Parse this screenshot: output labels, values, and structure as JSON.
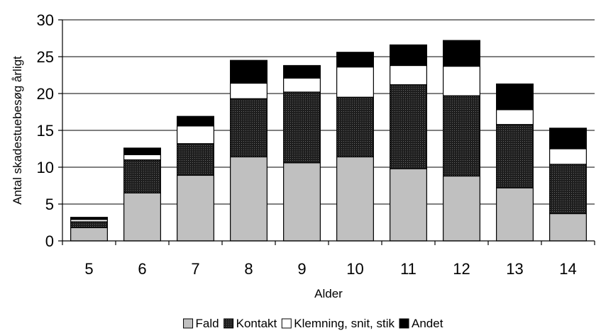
{
  "chart_data": {
    "type": "bar",
    "stacked": true,
    "title": "",
    "xlabel": "Alder",
    "ylabel": "Antal skadestuebesøg årligt",
    "categories": [
      "5",
      "6",
      "7",
      "8",
      "9",
      "10",
      "11",
      "12",
      "13",
      "14"
    ],
    "ylim": [
      0,
      30
    ],
    "yticks": [
      "0",
      "5",
      "10",
      "15",
      "20",
      "25",
      "30"
    ],
    "grid": true,
    "legend_position": "bottom",
    "series": [
      {
        "name": "Fald",
        "color": "#c0c0c0",
        "pattern": "solid",
        "values": [
          1.8,
          6.5,
          8.9,
          11.4,
          10.6,
          11.4,
          9.8,
          8.8,
          7.2,
          3.7
        ]
      },
      {
        "name": "Kontakt",
        "color": "#333333",
        "pattern": "dotted-dark",
        "values": [
          0.8,
          4.5,
          4.3,
          7.9,
          9.6,
          8.1,
          11.4,
          10.9,
          8.6,
          6.7
        ]
      },
      {
        "name": "Klemning, snit, stik",
        "color": "#ffffff",
        "pattern": "solid",
        "values": [
          0.3,
          0.7,
          2.4,
          2.1,
          1.9,
          4.1,
          2.6,
          4.0,
          2.0,
          2.1
        ]
      },
      {
        "name": "Andet",
        "color": "#000000",
        "pattern": "solid",
        "values": [
          0.3,
          0.9,
          1.3,
          3.1,
          1.7,
          2.0,
          2.8,
          3.5,
          3.5,
          2.8
        ]
      }
    ]
  }
}
